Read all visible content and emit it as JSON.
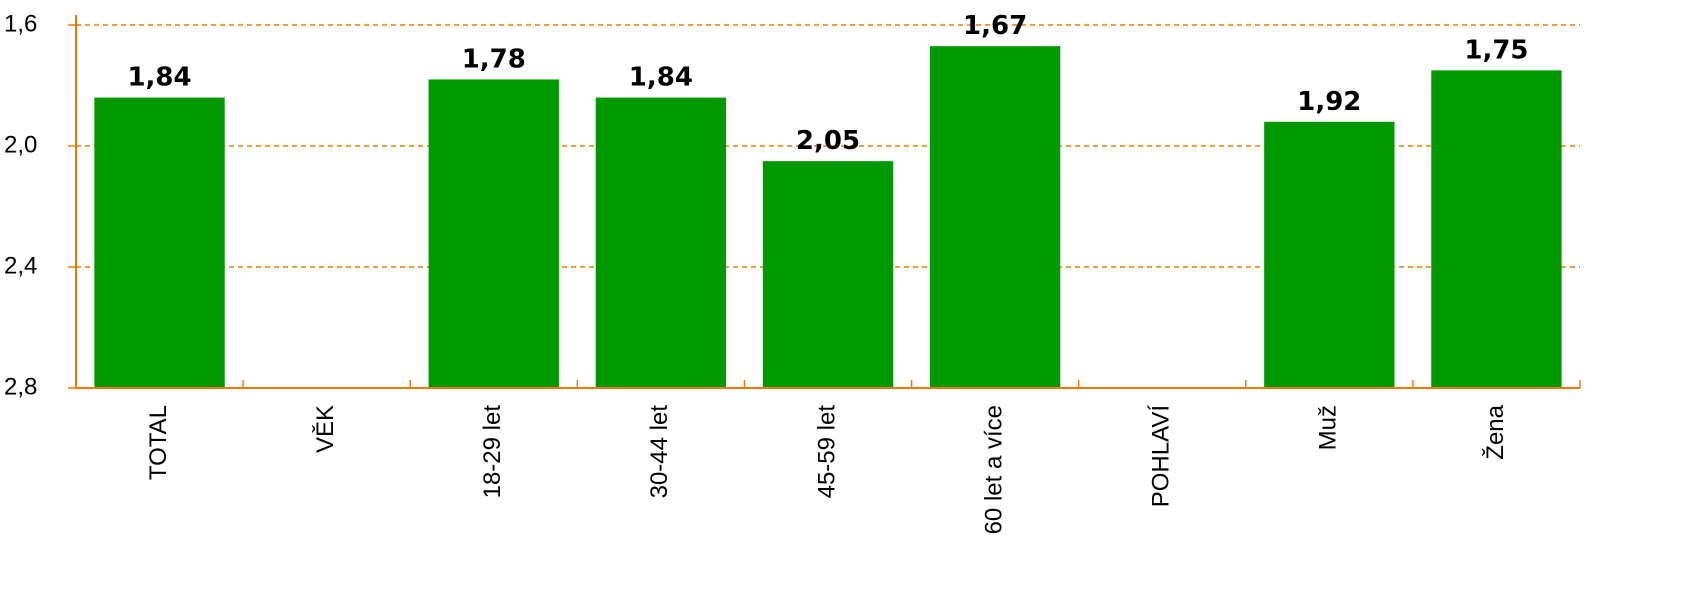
{
  "chart_data": {
    "type": "bar",
    "categories": [
      "TOTAL",
      "VĚK",
      "18-29 let",
      "30-44 let",
      "45-59 let",
      "60 let a více",
      "POHLAVÍ",
      "Muž",
      "Žena"
    ],
    "values": [
      1.84,
      null,
      1.78,
      1.84,
      2.05,
      1.67,
      null,
      1.92,
      1.75
    ],
    "value_labels": [
      "1,84",
      null,
      "1,78",
      "1,84",
      "2,05",
      "1,67",
      null,
      "1,92",
      "1,75"
    ],
    "color": "#009900",
    "ylim": [
      1.6,
      2.8
    ],
    "inverted": true,
    "yticks": [
      {
        "value": 1.6,
        "label": "1,6"
      },
      {
        "value": 2.0,
        "label": "2,0"
      },
      {
        "value": 2.4,
        "label": "2,4"
      },
      {
        "value": 2.8,
        "label": "2,8"
      }
    ],
    "grid": true
  }
}
